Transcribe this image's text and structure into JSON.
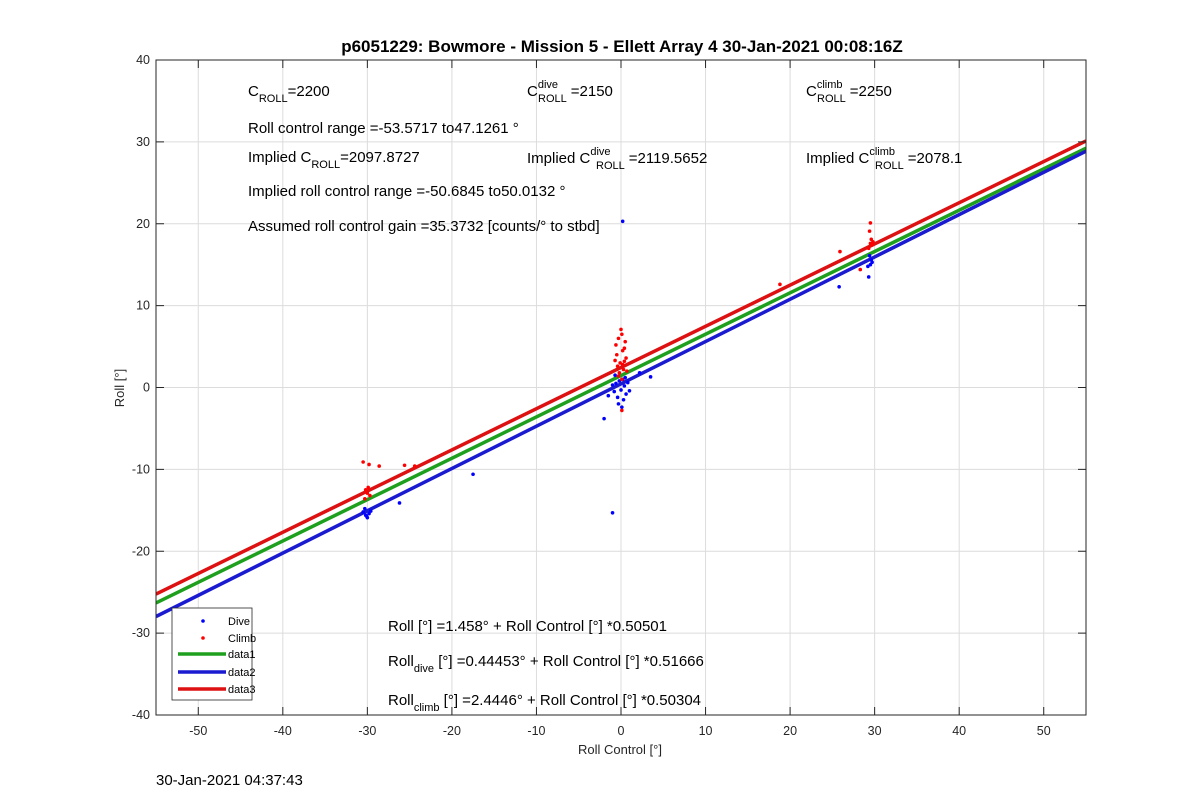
{
  "chart_data": {
    "type": "scatter",
    "title": "p6051229: Bowmore - Mission 5 - Ellett Array 4 30-Jan-2021 00:08:16Z",
    "xlabel": "Roll Control [°]",
    "ylabel": "Roll [°]",
    "xlim": [
      -55,
      55
    ],
    "ylim": [
      -40,
      40
    ],
    "xticks": [
      -50,
      -40,
      -30,
      -20,
      -10,
      0,
      10,
      20,
      30,
      40,
      50
    ],
    "yticks": [
      -40,
      -30,
      -20,
      -10,
      0,
      10,
      20,
      30,
      40
    ],
    "grid": true,
    "legend_position": "bottom-left",
    "colors": {
      "dive": "#0000ff",
      "climb": "#ff0000",
      "data1": "#1ea01e",
      "data2": "#1a1ad0",
      "data3": "#dd1111"
    },
    "series": [
      {
        "name": "Dive",
        "kind": "scatter",
        "points": [
          [
            -30.5,
            -15.2
          ],
          [
            -30.2,
            -15.6
          ],
          [
            -30.0,
            -15.9
          ],
          [
            -29.8,
            -15.4
          ],
          [
            -30.3,
            -14.8
          ],
          [
            -29.6,
            -15.1
          ],
          [
            -30.1,
            -15.7
          ],
          [
            -26.2,
            -14.1
          ],
          [
            -17.5,
            -10.6
          ],
          [
            -2.0,
            -3.8
          ],
          [
            -1.5,
            -1.0
          ],
          [
            -1.0,
            0.3
          ],
          [
            -0.8,
            -0.5
          ],
          [
            -0.6,
            0.5
          ],
          [
            -0.4,
            -1.2
          ],
          [
            -0.2,
            0.8
          ],
          [
            0.0,
            -0.3
          ],
          [
            0.2,
            1.0
          ],
          [
            0.3,
            -1.5
          ],
          [
            0.4,
            0.2
          ],
          [
            0.6,
            -0.8
          ],
          [
            0.8,
            0.6
          ],
          [
            -0.3,
            -2.0
          ],
          [
            0.1,
            -2.4
          ],
          [
            0.5,
            1.2
          ],
          [
            -0.7,
            1.5
          ],
          [
            1.0,
            -0.4
          ],
          [
            3.5,
            1.3
          ],
          [
            2.2,
            1.8
          ],
          [
            -1.0,
            -15.3
          ],
          [
            0.2,
            20.3
          ],
          [
            25.8,
            12.3
          ],
          [
            29.3,
            13.5
          ],
          [
            29.5,
            15.0
          ],
          [
            29.6,
            15.6
          ],
          [
            29.4,
            16.1
          ],
          [
            29.7,
            15.3
          ],
          [
            29.2,
            14.8
          ]
        ]
      },
      {
        "name": "Climb",
        "kind": "scatter",
        "points": [
          [
            -30.5,
            -9.1
          ],
          [
            -29.8,
            -9.4
          ],
          [
            -28.6,
            -9.6
          ],
          [
            -30.2,
            -12.5
          ],
          [
            -30.0,
            -12.9
          ],
          [
            -29.7,
            -13.2
          ],
          [
            -30.3,
            -13.6
          ],
          [
            -29.9,
            -12.2
          ],
          [
            -25.6,
            -9.5
          ],
          [
            -24.4,
            -9.6
          ],
          [
            -0.6,
            5.2
          ],
          [
            -0.3,
            6.0
          ],
          [
            0.0,
            7.1
          ],
          [
            0.2,
            4.5
          ],
          [
            0.4,
            3.2
          ],
          [
            -0.4,
            2.6
          ],
          [
            -0.2,
            1.8
          ],
          [
            0.1,
            1.0
          ],
          [
            0.3,
            2.2
          ],
          [
            0.6,
            3.6
          ],
          [
            -0.5,
            4.0
          ],
          [
            0.5,
            5.6
          ],
          [
            -0.1,
            3.0
          ],
          [
            0.2,
            2.8
          ],
          [
            0.4,
            4.8
          ],
          [
            -0.3,
            1.4
          ],
          [
            0.7,
            2.0
          ],
          [
            -0.7,
            3.3
          ],
          [
            0.1,
            6.5
          ],
          [
            0.1,
            -2.8
          ],
          [
            18.8,
            12.6
          ],
          [
            25.9,
            16.6
          ],
          [
            28.3,
            14.4
          ],
          [
            29.3,
            17.0
          ],
          [
            29.5,
            17.6
          ],
          [
            29.6,
            18.1
          ],
          [
            29.4,
            19.1
          ],
          [
            29.7,
            17.4
          ],
          [
            29.5,
            20.1
          ],
          [
            29.8,
            17.8
          ]
        ]
      },
      {
        "name": "data1",
        "kind": "line",
        "intercept": 1.458,
        "slope": 0.50501
      },
      {
        "name": "data2",
        "kind": "line",
        "intercept": 0.44453,
        "slope": 0.51666
      },
      {
        "name": "data3",
        "kind": "line",
        "intercept": 2.4446,
        "slope": 0.50304
      }
    ],
    "annotations": {
      "c_roll": {
        "main": "C",
        "sub": "ROLL",
        "value": "=2200"
      },
      "c_roll_dive": {
        "main": "C",
        "sup": "dive",
        "sub": "ROLL",
        "value": "=2150"
      },
      "c_roll_climb": {
        "main": "C",
        "sup": "climb",
        "sub": "ROLL",
        "value": "=2250"
      },
      "roll_range": "Roll control range =-53.5717 to47.1261 °",
      "implied_c_roll": {
        "prefix": "Implied C",
        "sub": "ROLL",
        "value": "=2097.8727"
      },
      "implied_c_roll_dive": {
        "prefix": "Implied C",
        "sup": "dive",
        "sub": "ROLL",
        "value": "=2119.5652"
      },
      "implied_c_roll_climb": {
        "prefix": "Implied C",
        "sup": "climb",
        "sub": "ROLL",
        "value": "=2078.1"
      },
      "implied_range": "Implied roll control range =-50.6845 to50.0132 °",
      "gain": "Assumed roll control gain =35.3732 [counts/° to stbd]",
      "fit_all": "Roll [°] =1.458° + Roll Control [°] *0.50501",
      "fit_dive": {
        "prefix": "Roll",
        "sub": "dive",
        "rest": " [°] =0.44453° + Roll Control [°] *0.51666"
      },
      "fit_climb": {
        "prefix": "Roll",
        "sub": "climb",
        "rest": " [°] =2.4446° + Roll Control [°] *0.50304"
      }
    }
  },
  "footer": {
    "timestamp": "30-Jan-2021 04:37:43"
  }
}
